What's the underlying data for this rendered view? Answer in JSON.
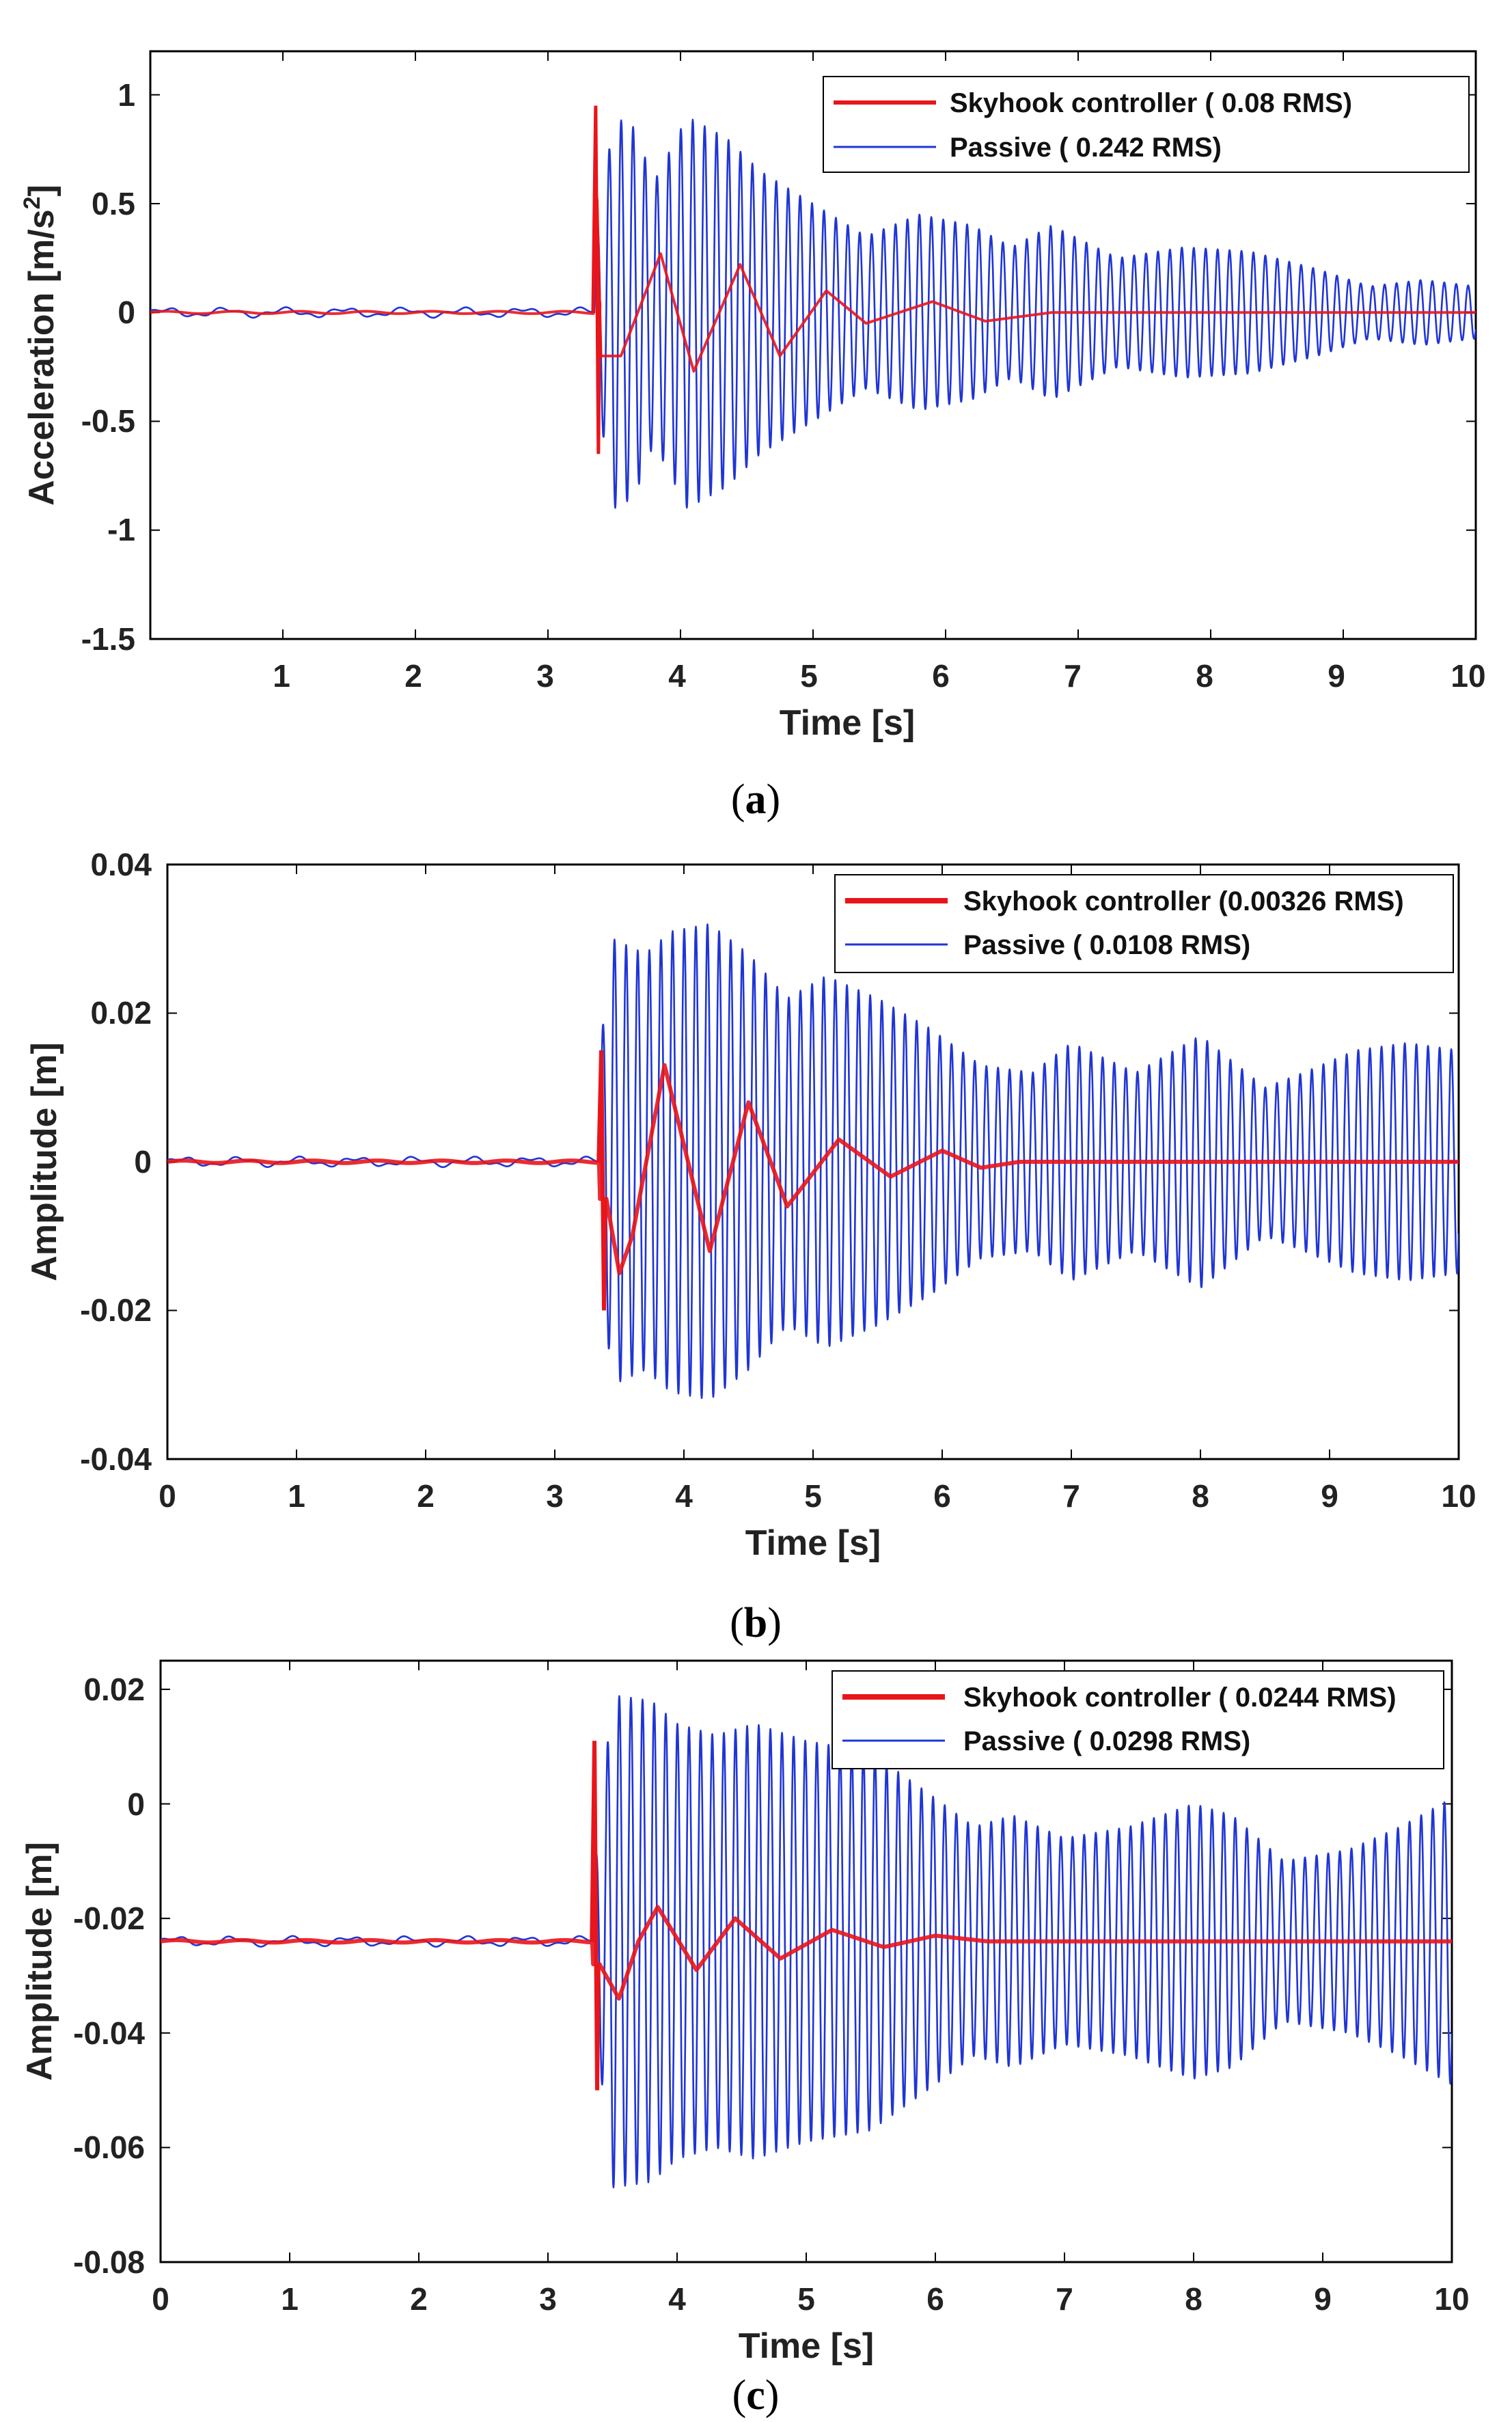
{
  "chart_data": [
    {
      "type": "line",
      "caption_letter": "a",
      "xlabel": "Time [s]",
      "ylabel": "Acceleration  [m/s",
      "ylabel_sup": "2",
      "ylabel_end": "]",
      "xlim": [
        0,
        10
      ],
      "ylim": [
        -1.5,
        1.2
      ],
      "xticks": [
        1,
        2,
        3,
        4,
        5,
        6,
        7,
        8,
        9,
        10
      ],
      "yticks": [
        -1.5,
        -1,
        -0.5,
        0,
        0.5,
        1
      ],
      "ytick_labels": [
        "-1.5",
        "-1",
        "-0.5",
        "0",
        "0.5",
        "1"
      ],
      "grid": false,
      "legend_position": "top-right",
      "impact_time": 3.35,
      "series": [
        {
          "name": "Skyhook controller (   0.08 RMS)",
          "color": "#e8151b",
          "pre_level": 0,
          "spike": [
            0.95,
            -0.65
          ],
          "envelope_points": [
            [
              3.37,
              0.55
            ],
            [
              3.4,
              -0.2
            ],
            [
              3.55,
              -0.2
            ],
            [
              3.85,
              0.27
            ],
            [
              4.1,
              -0.27
            ],
            [
              4.45,
              0.22
            ],
            [
              4.75,
              -0.2
            ],
            [
              5.1,
              0.1
            ],
            [
              5.4,
              -0.05
            ],
            [
              5.9,
              0.05
            ],
            [
              6.3,
              -0.04
            ],
            [
              6.8,
              0.0
            ],
            [
              10,
              0.0
            ]
          ]
        },
        {
          "name": "Passive  (  0.242 RMS)",
          "color": "#1f35d6",
          "pre_level": 0,
          "osc_period": 0.09,
          "envelope_points": [
            [
              3.35,
              0.3
            ],
            [
              3.5,
              0.9
            ],
            [
              3.65,
              0.85
            ],
            [
              3.8,
              0.6
            ],
            [
              4.05,
              0.9
            ],
            [
              4.35,
              0.8
            ],
            [
              4.6,
              0.65
            ],
            [
              5.0,
              0.5
            ],
            [
              5.4,
              0.35
            ],
            [
              5.8,
              0.45
            ],
            [
              6.2,
              0.4
            ],
            [
              6.5,
              0.3
            ],
            [
              6.8,
              0.4
            ],
            [
              7.3,
              0.25
            ],
            [
              7.8,
              0.3
            ],
            [
              8.3,
              0.28
            ],
            [
              8.8,
              0.2
            ],
            [
              9.2,
              0.12
            ],
            [
              9.6,
              0.15
            ],
            [
              10,
              0.12
            ]
          ]
        }
      ]
    },
    {
      "type": "line",
      "caption_letter": "b",
      "xlabel": "Time [s]",
      "ylabel": "Amplitude [m]",
      "ylabel_sup": "",
      "ylabel_end": "",
      "xlim": [
        0,
        10
      ],
      "ylim": [
        -0.04,
        0.04
      ],
      "xticks": [
        0,
        1,
        2,
        3,
        4,
        5,
        6,
        7,
        8,
        9,
        10
      ],
      "yticks": [
        -0.04,
        -0.02,
        0,
        0.02,
        0.04
      ],
      "ytick_labels": [
        "-0.04",
        "-0.02",
        "0",
        "0.02",
        "0.04"
      ],
      "grid": false,
      "legend_position": "top-right",
      "impact_time": 3.35,
      "series": [
        {
          "name": "Skyhook controller (0.00326 RMS)",
          "color": "#e8151b",
          "pre_level": 0,
          "spike": [
            0.015,
            -0.02
          ],
          "envelope_points": [
            [
              3.4,
              -0.005
            ],
            [
              3.5,
              -0.015
            ],
            [
              3.6,
              -0.01
            ],
            [
              3.85,
              0.013
            ],
            [
              4.2,
              -0.012
            ],
            [
              4.5,
              0.008
            ],
            [
              4.8,
              -0.006
            ],
            [
              5.2,
              0.003
            ],
            [
              5.6,
              -0.002
            ],
            [
              6.0,
              0.0015
            ],
            [
              6.3,
              -0.0008
            ],
            [
              6.6,
              0.0
            ],
            [
              10,
              0.0
            ]
          ]
        },
        {
          "name": "Passive  ( 0.0108 RMS)",
          "color": "#1f35d6",
          "pre_level": 0,
          "osc_period": 0.09,
          "envelope_points": [
            [
              3.35,
              0.015
            ],
            [
              3.45,
              0.03
            ],
            [
              3.7,
              0.028
            ],
            [
              3.9,
              0.031
            ],
            [
              4.2,
              0.032
            ],
            [
              4.5,
              0.028
            ],
            [
              4.8,
              0.022
            ],
            [
              5.1,
              0.025
            ],
            [
              5.5,
              0.022
            ],
            [
              5.9,
              0.018
            ],
            [
              6.3,
              0.013
            ],
            [
              6.7,
              0.012
            ],
            [
              7.0,
              0.016
            ],
            [
              7.5,
              0.012
            ],
            [
              8.0,
              0.017
            ],
            [
              8.5,
              0.01
            ],
            [
              8.8,
              0.012
            ],
            [
              9.2,
              0.015
            ],
            [
              9.6,
              0.016
            ],
            [
              10,
              0.015
            ]
          ]
        }
      ]
    },
    {
      "type": "line",
      "caption_letter": "c",
      "xlabel": "Time [s]",
      "ylabel": "Amplitude [m]",
      "ylabel_sup": "",
      "ylabel_end": "",
      "xlim": [
        0,
        10
      ],
      "ylim": [
        -0.08,
        0.025
      ],
      "xticks": [
        0,
        1,
        2,
        3,
        4,
        5,
        6,
        7,
        8,
        9,
        10
      ],
      "yticks": [
        -0.08,
        -0.06,
        -0.04,
        -0.02,
        0,
        0.02
      ],
      "ytick_labels": [
        "-0.08",
        "-0.06",
        "-0.04",
        "-0.02",
        "0",
        "0.02"
      ],
      "grid": false,
      "legend_position": "top-right",
      "impact_time": 3.35,
      "series": [
        {
          "name": "Skyhook controller ( 0.0244 RMS)",
          "color": "#e8151b",
          "pre_level": -0.024,
          "spike": [
            0.011,
            -0.05
          ],
          "envelope_points": [
            [
              3.4,
              -0.028
            ],
            [
              3.55,
              -0.034
            ],
            [
              3.7,
              -0.024
            ],
            [
              3.85,
              -0.018
            ],
            [
              4.15,
              -0.029
            ],
            [
              4.45,
              -0.02
            ],
            [
              4.8,
              -0.027
            ],
            [
              5.2,
              -0.022
            ],
            [
              5.6,
              -0.025
            ],
            [
              6.0,
              -0.023
            ],
            [
              6.4,
              -0.024
            ],
            [
              10,
              -0.024
            ]
          ]
        },
        {
          "name": "Passive  ( 0.0298 RMS)",
          "color": "#1f35d6",
          "pre_level": -0.024,
          "osc_period": 0.09,
          "envelope_points": [
            [
              3.35,
              0.01
            ],
            [
              3.5,
              0.043
            ],
            [
              3.8,
              0.042
            ],
            [
              4.0,
              0.038
            ],
            [
              4.3,
              0.036
            ],
            [
              4.6,
              0.038
            ],
            [
              5.0,
              0.035
            ],
            [
              5.5,
              0.033
            ],
            [
              6.0,
              0.025
            ],
            [
              6.3,
              0.02
            ],
            [
              6.6,
              0.022
            ],
            [
              7.0,
              0.018
            ],
            [
              7.5,
              0.02
            ],
            [
              8.0,
              0.024
            ],
            [
              8.3,
              0.022
            ],
            [
              8.7,
              0.014
            ],
            [
              9.2,
              0.016
            ],
            [
              9.6,
              0.02
            ],
            [
              10,
              0.025
            ]
          ]
        }
      ]
    }
  ]
}
